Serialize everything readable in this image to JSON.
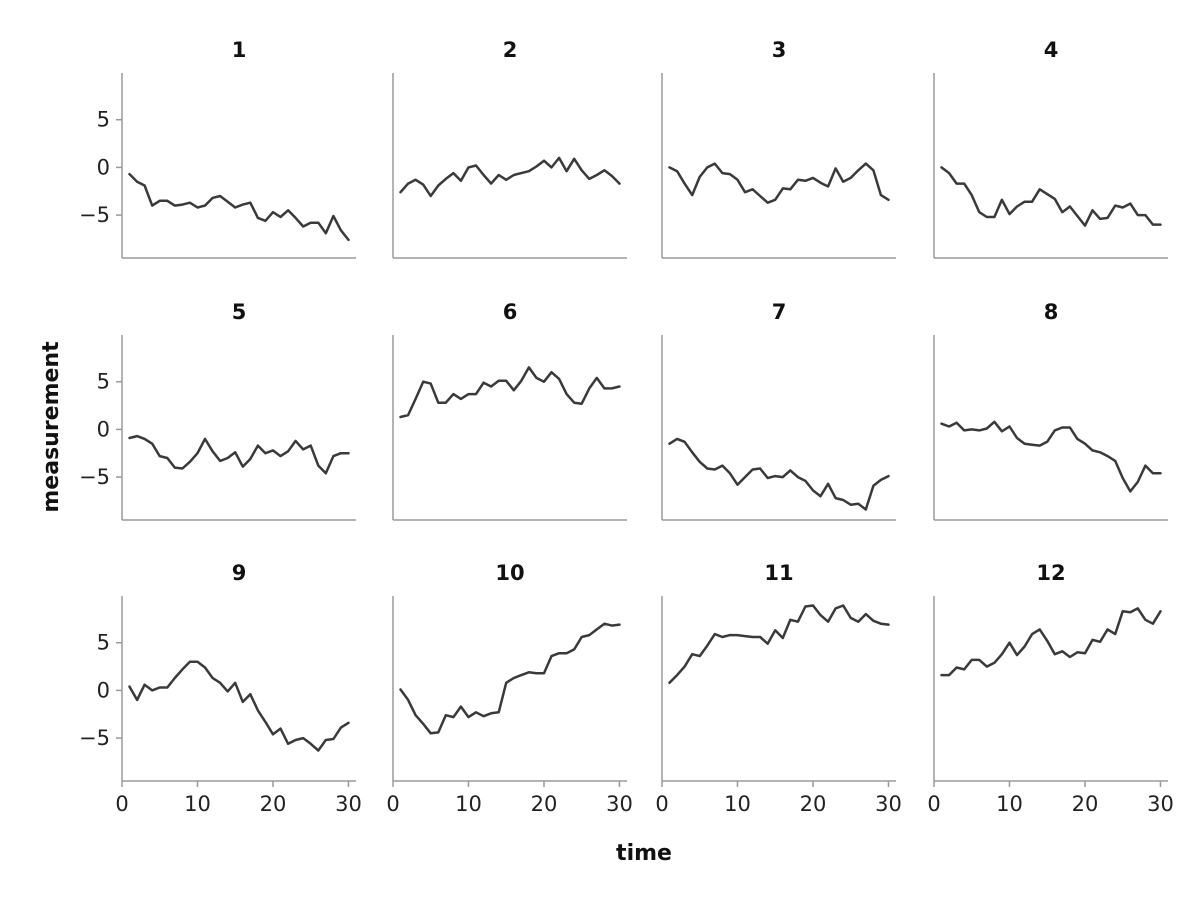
{
  "chart_data": {
    "type": "line",
    "layout": "facet-grid",
    "xlabel": "time",
    "ylabel": "measurement",
    "xlim": [
      0,
      31
    ],
    "ylim": [
      -9.5,
      9.9
    ],
    "x_ticks": [
      0,
      10,
      20,
      30
    ],
    "y_ticks": [
      -5,
      0,
      5
    ],
    "grid": false,
    "line_color": "#3a3a3a",
    "axis_color": "#9a9a9a",
    "x": [
      1,
      2,
      3,
      4,
      5,
      6,
      7,
      8,
      9,
      10,
      11,
      12,
      13,
      14,
      15,
      16,
      17,
      18,
      19,
      20,
      21,
      22,
      23,
      24,
      25,
      26,
      27,
      28,
      29,
      30
    ],
    "panels": [
      {
        "title": "1",
        "values": [
          -0.7,
          -1.5,
          -1.9,
          -4.0,
          -3.5,
          -3.5,
          -4.0,
          -3.9,
          -3.7,
          -4.2,
          -4.0,
          -3.2,
          -3.0,
          -3.6,
          -4.2,
          -3.9,
          -3.7,
          -5.3,
          -5.6,
          -4.7,
          -5.2,
          -4.5,
          -5.3,
          -6.2,
          -5.8,
          -5.8,
          -6.9,
          -5.1,
          -6.6,
          -7.6
        ]
      },
      {
        "title": "2",
        "values": [
          -2.6,
          -1.7,
          -1.3,
          -1.8,
          -3.0,
          -1.9,
          -1.2,
          -0.6,
          -1.4,
          0.0,
          0.2,
          -0.8,
          -1.7,
          -0.8,
          -1.3,
          -0.8,
          -0.6,
          -0.4,
          0.1,
          0.7,
          0.0,
          1.0,
          -0.4,
          0.9,
          -0.3,
          -1.2,
          -0.8,
          -0.3,
          -0.9,
          -1.7
        ]
      },
      {
        "title": "3",
        "values": [
          0.0,
          -0.4,
          -1.7,
          -2.9,
          -1.0,
          0.0,
          0.4,
          -0.6,
          -0.7,
          -1.3,
          -2.6,
          -2.3,
          -3.0,
          -3.7,
          -3.4,
          -2.2,
          -2.3,
          -1.3,
          -1.4,
          -1.1,
          -1.6,
          -2.0,
          -0.1,
          -1.5,
          -1.1,
          -0.3,
          0.4,
          -0.3,
          -2.9,
          -3.4
        ]
      },
      {
        "title": "4",
        "values": [
          0.0,
          -0.6,
          -1.7,
          -1.7,
          -2.9,
          -4.7,
          -5.2,
          -5.2,
          -3.4,
          -4.9,
          -4.1,
          -3.6,
          -3.6,
          -2.3,
          -2.8,
          -3.3,
          -4.7,
          -4.1,
          -5.1,
          -6.1,
          -4.5,
          -5.4,
          -5.3,
          -4.0,
          -4.2,
          -3.8,
          -5.0,
          -5.0,
          -6.0,
          -6.0
        ]
      },
      {
        "title": "5",
        "values": [
          -0.9,
          -0.7,
          -1.0,
          -1.5,
          -2.8,
          -3.0,
          -4.0,
          -4.1,
          -3.4,
          -2.5,
          -1.0,
          -2.3,
          -3.3,
          -3.0,
          -2.4,
          -3.9,
          -3.1,
          -1.7,
          -2.5,
          -2.2,
          -2.8,
          -2.3,
          -1.2,
          -2.1,
          -1.7,
          -3.8,
          -4.6,
          -2.8,
          -2.5,
          -2.5
        ]
      },
      {
        "title": "6",
        "values": [
          1.3,
          1.5,
          3.2,
          5.0,
          4.8,
          2.8,
          2.8,
          3.7,
          3.2,
          3.7,
          3.7,
          4.9,
          4.5,
          5.1,
          5.1,
          4.1,
          5.1,
          6.5,
          5.4,
          5.0,
          6.0,
          5.3,
          3.7,
          2.8,
          2.7,
          4.3,
          5.4,
          4.3,
          4.3,
          4.5
        ]
      },
      {
        "title": "7",
        "values": [
          -1.5,
          -1.0,
          -1.3,
          -2.4,
          -3.4,
          -4.1,
          -4.2,
          -3.8,
          -4.6,
          -5.8,
          -5.0,
          -4.2,
          -4.1,
          -5.1,
          -4.9,
          -5.0,
          -4.3,
          -5.0,
          -5.4,
          -6.4,
          -7.0,
          -5.7,
          -7.2,
          -7.4,
          -7.9,
          -7.8,
          -8.4,
          -5.9,
          -5.3,
          -4.9
        ]
      },
      {
        "title": "8",
        "values": [
          0.6,
          0.3,
          0.7,
          -0.1,
          0.0,
          -0.1,
          0.1,
          0.8,
          -0.2,
          0.3,
          -0.9,
          -1.5,
          -1.6,
          -1.7,
          -1.3,
          -0.1,
          0.2,
          0.2,
          -1.0,
          -1.5,
          -2.2,
          -2.4,
          -2.8,
          -3.3,
          -5.1,
          -6.5,
          -5.5,
          -3.8,
          -4.6,
          -4.6
        ]
      },
      {
        "title": "9",
        "values": [
          0.4,
          -1.0,
          0.6,
          0.0,
          0.3,
          0.3,
          1.3,
          2.2,
          3.0,
          3.0,
          2.4,
          1.3,
          0.8,
          -0.1,
          0.8,
          -1.2,
          -0.4,
          -2.1,
          -3.3,
          -4.6,
          -4.0,
          -5.6,
          -5.2,
          -5.0,
          -5.6,
          -6.3,
          -5.2,
          -5.1,
          -3.9,
          -3.4
        ]
      },
      {
        "title": "10",
        "values": [
          0.1,
          -1.0,
          -2.6,
          -3.5,
          -4.5,
          -4.4,
          -2.6,
          -2.8,
          -1.7,
          -2.8,
          -2.3,
          -2.7,
          -2.4,
          -2.3,
          0.8,
          1.3,
          1.6,
          1.9,
          1.8,
          1.8,
          3.6,
          3.9,
          3.9,
          4.3,
          5.6,
          5.8,
          6.4,
          7.0,
          6.8,
          6.9
        ]
      },
      {
        "title": "11",
        "values": [
          0.8,
          1.6,
          2.5,
          3.8,
          3.6,
          4.7,
          5.9,
          5.6,
          5.8,
          5.8,
          5.7,
          5.6,
          5.6,
          4.9,
          6.3,
          5.5,
          7.4,
          7.2,
          8.8,
          8.9,
          7.9,
          7.2,
          8.6,
          8.9,
          7.6,
          7.2,
          8.0,
          7.3,
          7.0,
          6.9
        ]
      },
      {
        "title": "12",
        "values": [
          1.6,
          1.6,
          2.4,
          2.2,
          3.2,
          3.2,
          2.5,
          2.9,
          3.8,
          5.0,
          3.7,
          4.6,
          5.9,
          6.4,
          5.2,
          3.8,
          4.1,
          3.5,
          4.0,
          3.9,
          5.3,
          5.1,
          6.4,
          5.9,
          8.3,
          8.2,
          8.6,
          7.4,
          7.0,
          8.3
        ]
      }
    ]
  }
}
